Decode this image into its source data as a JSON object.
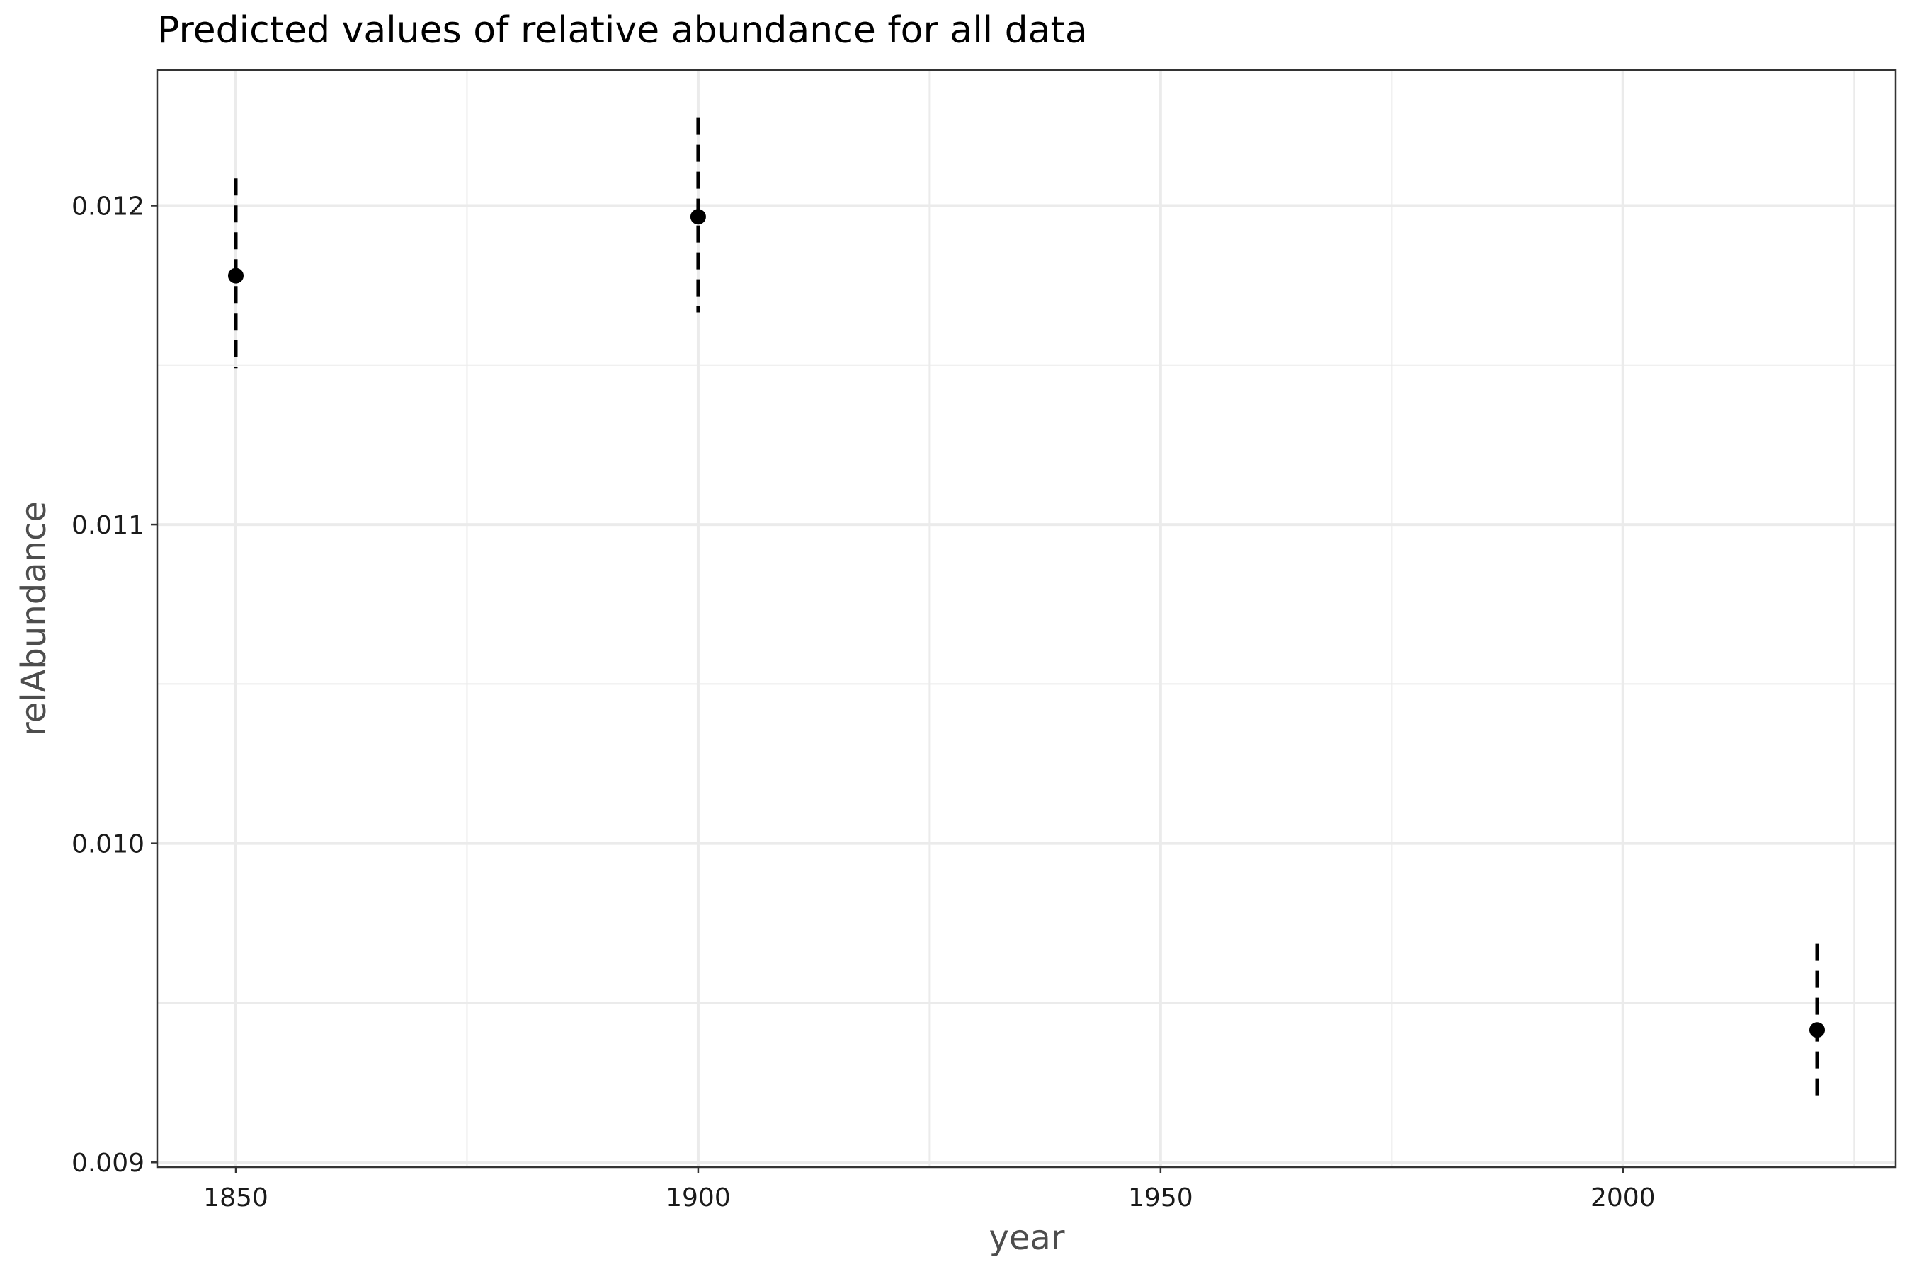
{
  "chart_data": {
    "type": "scatter",
    "title": "Predicted values of relative abundance for all data",
    "xlabel": "year",
    "ylabel": "relAbundance",
    "x": [
      1850,
      1900,
      2021
    ],
    "y": [
      0.01178,
      0.011965,
      0.009415
    ],
    "ci_low": [
      0.01149,
      0.011665,
      0.009185
    ],
    "ci_high": [
      0.012085,
      0.012275,
      0.009685
    ],
    "error_bar_style": "dashed",
    "xlim": [
      1841.5,
      2029.5
    ],
    "ylim": [
      0.008985,
      0.012425
    ],
    "x_ticks": [
      1850,
      1900,
      1950,
      2000
    ],
    "x_tick_labels": [
      "1850",
      "1900",
      "1950",
      "2000"
    ],
    "x_minor_ticks": [
      1875,
      1925,
      1975,
      2025
    ],
    "y_ticks": [
      0.009,
      0.01,
      0.011,
      0.012
    ],
    "y_tick_labels": [
      "0.009",
      "0.010",
      "0.011",
      "0.012"
    ],
    "y_minor_ticks": [
      0.0095,
      0.0105,
      0.0115
    ],
    "grid": true,
    "legend": false,
    "colors": {
      "point": "#000000",
      "grid": "#ebebeb",
      "border": "#333333",
      "axis_title": "#4d4d4d",
      "tick_label": "#1a1a1a"
    }
  }
}
